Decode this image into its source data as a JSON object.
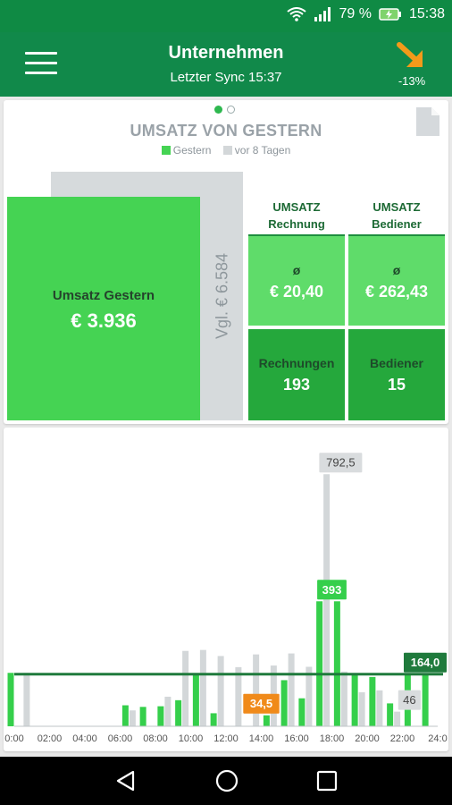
{
  "status_bar": {
    "battery": "79 %",
    "time": "15:38"
  },
  "app_bar": {
    "title": "Unternehmen",
    "subtitle": "Letzter Sync 15:37",
    "trend_value": "-13%",
    "trend_color": "#f39a1a"
  },
  "summary": {
    "title": "UMSATZ VON GESTERN",
    "legend": [
      "Gestern",
      "vor 8 Tagen"
    ],
    "main_label": "Umsatz Gestern",
    "main_value": "€ 3.936",
    "compare_label": "Vgl. € 6.584",
    "col1_header": [
      "UMSATZ",
      "Rechnung"
    ],
    "col2_header": [
      "UMSATZ",
      "Bediener"
    ],
    "tiles": [
      {
        "label": "ø",
        "value": "€ 20,40"
      },
      {
        "label": "ø",
        "value": "€ 262,43"
      },
      {
        "label": "Rechnungen",
        "value": "193"
      },
      {
        "label": "Bediener",
        "value": "15"
      }
    ]
  },
  "chart_data": {
    "type": "bar",
    "x_tick_labels": [
      "0:00",
      "02:00",
      "04:00",
      "06:00",
      "08:00",
      "10:00",
      "12:00",
      "14:00",
      "16:00",
      "18:00",
      "20:00",
      "22:00",
      "24:0"
    ],
    "x_range": [
      0,
      24
    ],
    "y_range": [
      0,
      900
    ],
    "series": [
      {
        "name": "Gestern",
        "color": "#35cf4b",
        "values": [
          {
            "x": 0,
            "y": 168
          },
          {
            "x": 6.5,
            "y": 66
          },
          {
            "x": 7.5,
            "y": 61
          },
          {
            "x": 8.5,
            "y": 63
          },
          {
            "x": 9.5,
            "y": 82
          },
          {
            "x": 10.5,
            "y": 166
          },
          {
            "x": 11.5,
            "y": 41
          },
          {
            "x": 12.5,
            "y": 0
          },
          {
            "x": 13.5,
            "y": 0
          },
          {
            "x": 14.5,
            "y": 34.5
          },
          {
            "x": 15.5,
            "y": 145
          },
          {
            "x": 16.5,
            "y": 88
          },
          {
            "x": 17.5,
            "y": 393
          },
          {
            "x": 18.5,
            "y": 393
          },
          {
            "x": 19.5,
            "y": 167
          },
          {
            "x": 20.5,
            "y": 155
          },
          {
            "x": 21.5,
            "y": 72
          },
          {
            "x": 22.5,
            "y": 164
          },
          {
            "x": 23.5,
            "y": 164
          }
        ]
      },
      {
        "name": "vor 8 Tagen",
        "color": "#d3d7d9",
        "values": [
          {
            "x": 0.5,
            "y": 168
          },
          {
            "x": 6.5,
            "y": 50
          },
          {
            "x": 8.5,
            "y": 93
          },
          {
            "x": 9.5,
            "y": 237
          },
          {
            "x": 10.5,
            "y": 240
          },
          {
            "x": 11.5,
            "y": 221
          },
          {
            "x": 12.5,
            "y": 186
          },
          {
            "x": 13.5,
            "y": 226
          },
          {
            "x": 14.5,
            "y": 191
          },
          {
            "x": 15.5,
            "y": 229
          },
          {
            "x": 16.5,
            "y": 187
          },
          {
            "x": 17.5,
            "y": 792.5
          },
          {
            "x": 18.5,
            "y": 172
          },
          {
            "x": 19.5,
            "y": 107
          },
          {
            "x": 20.5,
            "y": 113
          },
          {
            "x": 21.5,
            "y": 46
          }
        ]
      }
    ],
    "average_line": {
      "y": 164.0,
      "color": "#1f7a3c"
    },
    "data_labels": [
      {
        "text": "792,5",
        "x": 18.5,
        "y": 792.5,
        "style": "gray"
      },
      {
        "text": "393",
        "x": 18.0,
        "y": 393,
        "style": "green"
      },
      {
        "text": "34,5",
        "x": 14.0,
        "y": 34.5,
        "style": "orange"
      },
      {
        "text": "164,0",
        "x": 23.4,
        "y": 164,
        "style": "darkgreen"
      },
      {
        "text": "46",
        "x": 22.4,
        "y": 46,
        "style": "gray"
      }
    ]
  }
}
